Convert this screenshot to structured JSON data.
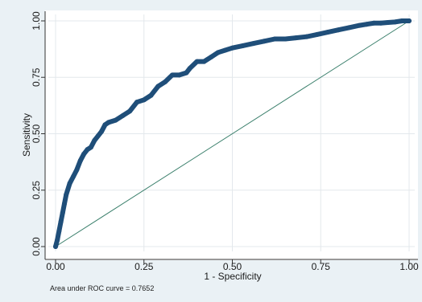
{
  "chart_data": {
    "type": "line",
    "title": "",
    "xlabel": "1 - Specificity",
    "ylabel": "Sensitivity",
    "xlim": [
      0,
      1
    ],
    "ylim": [
      0,
      1
    ],
    "x_ticks": [
      "0.00",
      "0.25",
      "0.50",
      "0.75",
      "1.00"
    ],
    "y_ticks": [
      "0.00",
      "0.25",
      "0.50",
      "0.75",
      "1.00"
    ],
    "grid": true,
    "annotation": "Area under ROC curve = 0.7652",
    "series": [
      {
        "color": "#1f4e79",
        "x": [
          0.0,
          0.005,
          0.01,
          0.015,
          0.02,
          0.025,
          0.03,
          0.04,
          0.05,
          0.06,
          0.07,
          0.08,
          0.09,
          0.1,
          0.11,
          0.12,
          0.13,
          0.14,
          0.15,
          0.17,
          0.19,
          0.21,
          0.23,
          0.25,
          0.27,
          0.29,
          0.31,
          0.33,
          0.35,
          0.37,
          0.38,
          0.4,
          0.42,
          0.44,
          0.46,
          0.48,
          0.5,
          0.53,
          0.56,
          0.59,
          0.62,
          0.65,
          0.68,
          0.71,
          0.74,
          0.77,
          0.8,
          0.83,
          0.86,
          0.88,
          0.9,
          0.92,
          0.94,
          0.96,
          0.98,
          1.0
        ],
        "y": [
          0.0,
          0.03,
          0.07,
          0.11,
          0.15,
          0.19,
          0.23,
          0.28,
          0.31,
          0.34,
          0.38,
          0.41,
          0.43,
          0.44,
          0.47,
          0.49,
          0.51,
          0.54,
          0.55,
          0.56,
          0.58,
          0.6,
          0.64,
          0.65,
          0.67,
          0.71,
          0.73,
          0.76,
          0.76,
          0.77,
          0.79,
          0.82,
          0.82,
          0.84,
          0.86,
          0.87,
          0.88,
          0.89,
          0.9,
          0.91,
          0.92,
          0.92,
          0.925,
          0.93,
          0.94,
          0.95,
          0.96,
          0.97,
          0.98,
          0.985,
          0.99,
          0.99,
          0.993,
          0.995,
          1.0,
          1.0
        ]
      },
      {
        "color": "#3a7f6b",
        "x": [
          0,
          1
        ],
        "y": [
          0,
          1
        ]
      }
    ]
  }
}
